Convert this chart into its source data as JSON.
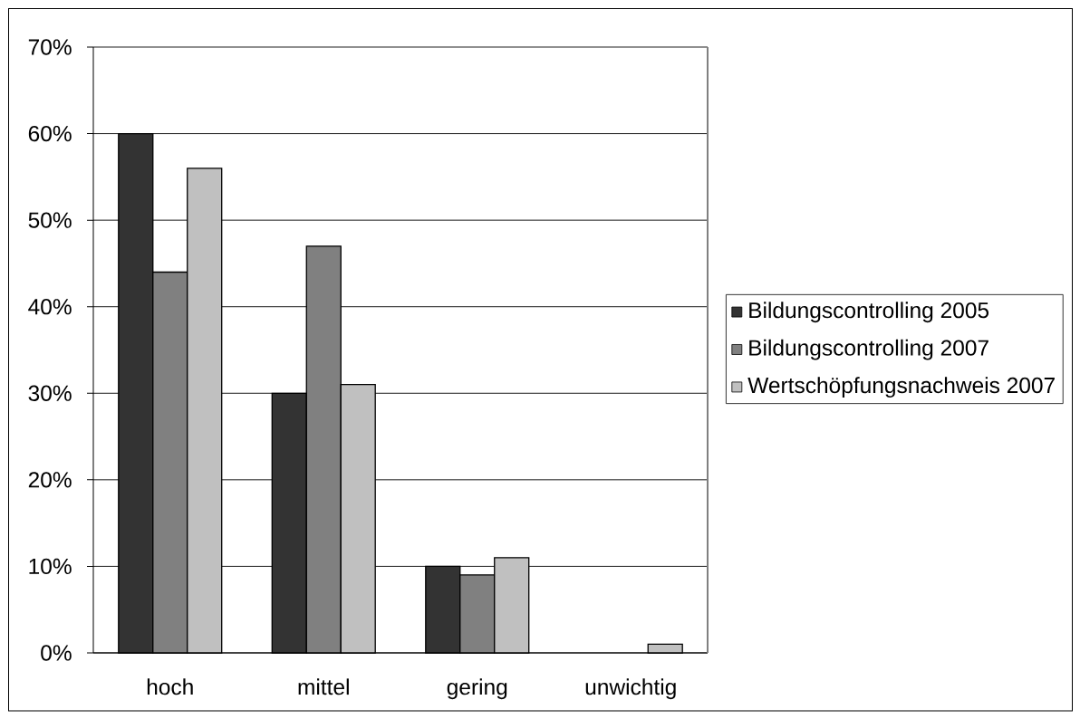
{
  "chart_data": {
    "type": "bar",
    "categories": [
      "hoch",
      "mittel",
      "gering",
      "unwichtig"
    ],
    "series": [
      {
        "name": "Bildungscontrolling 2005",
        "color": "#333333",
        "values": [
          60,
          30,
          10,
          0
        ]
      },
      {
        "name": "Bildungscontrolling 2007",
        "color": "#808080",
        "values": [
          44,
          47,
          9,
          0
        ]
      },
      {
        "name": "Wertschöpfungsnachweis 2007",
        "color": "#c0c0c0",
        "values": [
          56,
          31,
          11,
          1
        ]
      }
    ],
    "ylim": [
      0,
      70
    ],
    "yticks": [
      {
        "value": 0,
        "label": "0%"
      },
      {
        "value": 10,
        "label": "10%"
      },
      {
        "value": 20,
        "label": "20%"
      },
      {
        "value": 30,
        "label": "30%"
      },
      {
        "value": 40,
        "label": "40%"
      },
      {
        "value": 50,
        "label": "50%"
      },
      {
        "value": 60,
        "label": "60%"
      },
      {
        "value": 70,
        "label": "70%"
      }
    ],
    "grid": "y",
    "legend": "right"
  }
}
